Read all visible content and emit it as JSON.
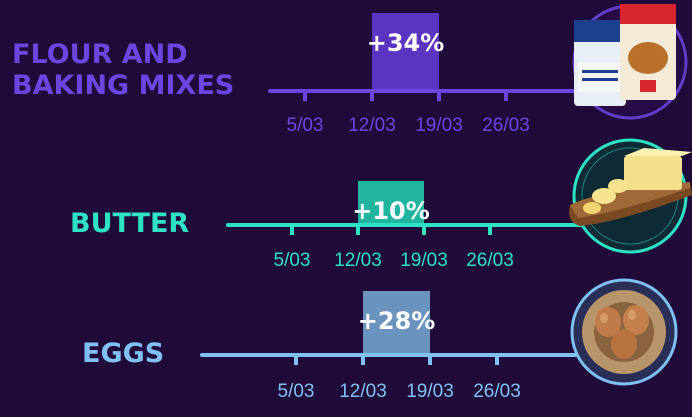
{
  "chart_data": {
    "type": "bar",
    "title": "",
    "xlabel": "",
    "ylabel": "",
    "categories": [
      "5/03",
      "12/03",
      "19/03",
      "26/03"
    ],
    "series": [
      {
        "name": "FLOUR AND BAKING MIXES",
        "name_lines": [
          "FLOUR AND",
          "BAKING MIXES"
        ],
        "label": "+34%",
        "value": 34,
        "highlight_from": "12/03",
        "highlight_to": "19/03",
        "color": "#6b46e0",
        "bar_color": "#5b35c2",
        "image": "flour-packages"
      },
      {
        "name": "BUTTER",
        "name_lines": [
          "BUTTER"
        ],
        "label": "+10%",
        "value": 10,
        "highlight_from": "12/03",
        "highlight_to": "19/03",
        "color": "#2de3c4",
        "bar_color": "#1fb59e",
        "image": "butter-board"
      },
      {
        "name": "EGGS",
        "name_lines": [
          "EGGS"
        ],
        "label": "+28%",
        "value": 28,
        "highlight_from": "12/03",
        "highlight_to": "19/03",
        "color": "#7ec1f2",
        "bar_color": "#6a93bd",
        "image": "eggs-bag"
      }
    ]
  }
}
